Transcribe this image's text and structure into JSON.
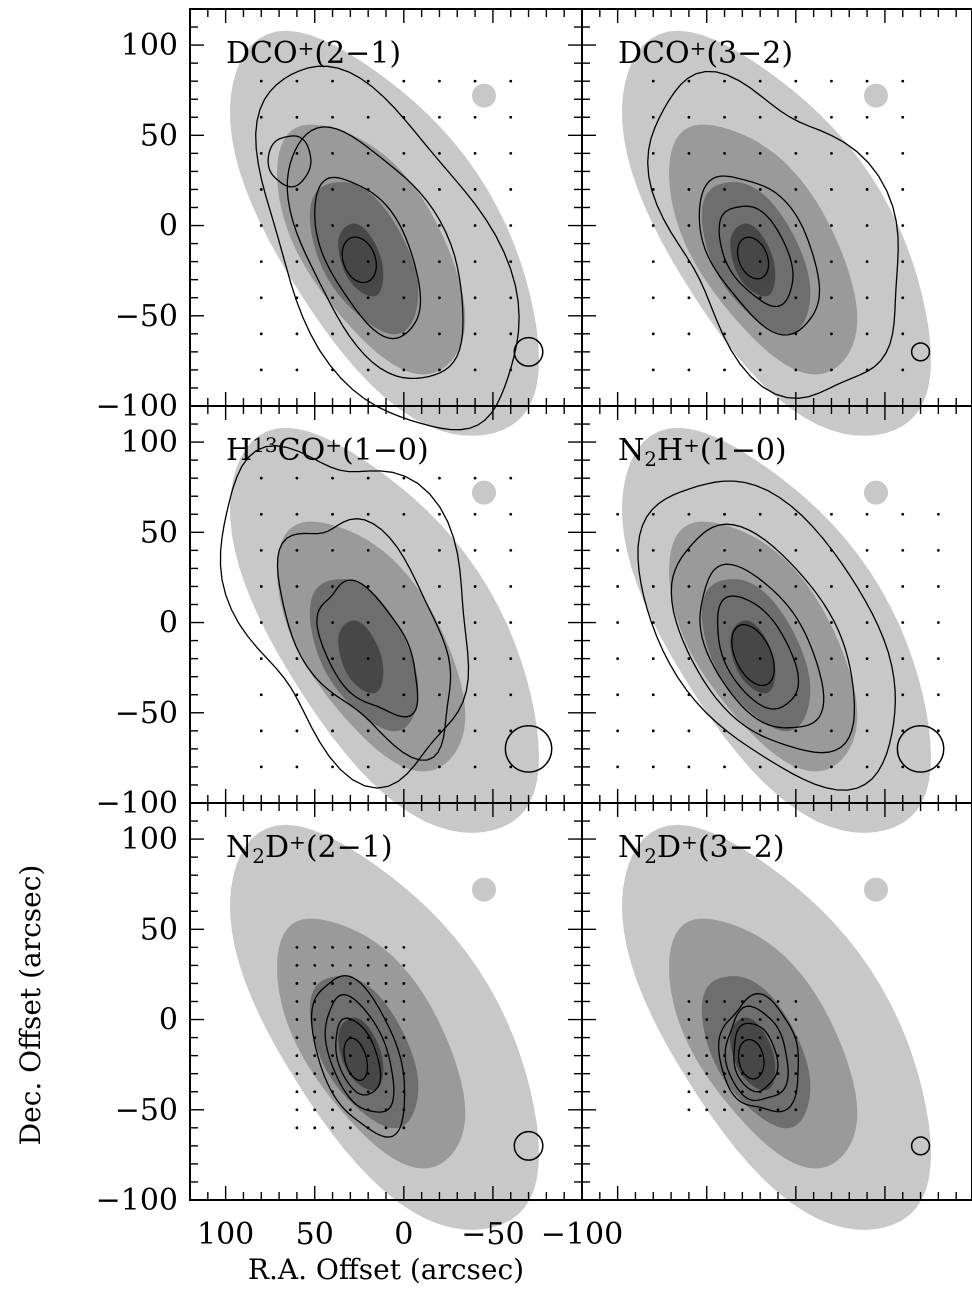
{
  "chart_data": {
    "type": "contour",
    "xlabel": "R.A. Offset (arcsec)",
    "ylabel": "Dec. Offset (arcsec)",
    "xlim": [
      120,
      -100
    ],
    "ylim": [
      -100,
      120
    ],
    "x_ticks": [
      "100",
      "50",
      "0",
      "−50",
      "−100"
    ],
    "x_tick_values": [
      100,
      50,
      0,
      -50,
      -100
    ],
    "y_ticks": [
      "100",
      "50",
      "0",
      "−50",
      "−100"
    ],
    "y_tick_values": [
      100,
      50,
      0,
      -50,
      -100
    ],
    "grayscale_levels": [
      "#c8c8c8",
      "#9a9a9a",
      "#6e6e6e",
      "#474747"
    ],
    "panels": [
      {
        "id": "dco-2-1",
        "row": 0,
        "col": 0,
        "label_parts": [
          [
            "DCO",
            ""
          ],
          [
            "+",
            "sup"
          ],
          [
            "(2−1)",
            ""
          ]
        ],
        "beam_diameter": 16,
        "contours": [
          {
            "ra": 10,
            "dec": -15,
            "dra": 57,
            "ddec": 110,
            "angle": -28,
            "wobble": 0.08
          },
          {
            "ra": 15,
            "dec": -16,
            "dra": 38,
            "ddec": 76,
            "angle": -28,
            "wobble": 0.06
          },
          {
            "ra": 20,
            "dec": -17,
            "dra": 23,
            "ddec": 48,
            "angle": -26,
            "wobble": 0.05
          },
          {
            "ra": 25,
            "dec": -19,
            "dra": 9,
            "ddec": 13,
            "angle": -20,
            "wobble": 0.0
          },
          {
            "ra": 64,
            "dec": 36,
            "dra": 12,
            "ddec": 14,
            "angle": 0,
            "wobble": 0.05
          }
        ],
        "dots": {
          "ra_from": 80,
          "ra_to": -60,
          "dec_from": -80,
          "dec_to": 80,
          "step": 20
        }
      },
      {
        "id": "dco-3-2",
        "row": 0,
        "col": 1,
        "label_parts": [
          [
            "DCO",
            ""
          ],
          [
            "+",
            "sup"
          ],
          [
            "(3−2)",
            ""
          ]
        ],
        "beam_diameter": 10,
        "contours": [
          {
            "ra": 10,
            "dec": -5,
            "dra": 58,
            "ddec": 95,
            "angle": -30,
            "wobble": 0.14
          },
          {
            "ra": 20,
            "dec": -15,
            "dra": 27,
            "ddec": 48,
            "angle": -30,
            "wobble": 0.06
          },
          {
            "ra": 22,
            "dec": -16,
            "dra": 17,
            "ddec": 30,
            "angle": -28,
            "wobble": 0.05
          },
          {
            "ra": 24,
            "dec": -18,
            "dra": 8,
            "ddec": 12,
            "angle": -22,
            "wobble": 0.0
          }
        ],
        "dots": {
          "ra_from": 80,
          "ra_to": -60,
          "dec_from": -80,
          "dec_to": 80,
          "step": 20
        }
      },
      {
        "id": "h13co-1-0",
        "row": 1,
        "col": 0,
        "label_parts": [
          [
            "H",
            ""
          ],
          [
            "13",
            "sup"
          ],
          [
            "CO",
            ""
          ],
          [
            "+",
            "sup"
          ],
          [
            "(1−0)",
            ""
          ]
        ],
        "beam_diameter": 26,
        "contours": [
          {
            "ra": 30,
            "dec": 10,
            "dra": 62,
            "ddec": 95,
            "angle": -25,
            "wobble": 0.16
          },
          {
            "ra": 20,
            "dec": -5,
            "dra": 38,
            "ddec": 70,
            "angle": -30,
            "wobble": 0.14
          },
          {
            "ra": 20,
            "dec": -15,
            "dra": 22,
            "ddec": 40,
            "angle": -30,
            "wobble": 0.1
          }
        ],
        "dots": {
          "ra_from": 80,
          "ra_to": -60,
          "dec_from": -80,
          "dec_to": 80,
          "step": 20
        }
      },
      {
        "id": "n2h-1-0",
        "row": 1,
        "col": 1,
        "label_parts": [
          [
            "N",
            ""
          ],
          [
            "2",
            "sub"
          ],
          [
            "H",
            ""
          ],
          [
            "+",
            "sup"
          ],
          [
            "(1−0)",
            ""
          ]
        ],
        "beam_diameter": 26,
        "contours": [
          {
            "ra": 15,
            "dec": -5,
            "dra": 56,
            "ddec": 96,
            "angle": -35,
            "wobble": 0.05
          },
          {
            "ra": 18,
            "dec": -10,
            "dra": 40,
            "ddec": 70,
            "angle": -33,
            "wobble": 0.05
          },
          {
            "ra": 20,
            "dec": -15,
            "dra": 27,
            "ddec": 50,
            "angle": -30,
            "wobble": 0.05
          },
          {
            "ra": 22,
            "dec": -17,
            "dra": 18,
            "ddec": 34,
            "angle": -28,
            "wobble": 0.04
          },
          {
            "ra": 24,
            "dec": -18,
            "dra": 10,
            "ddec": 18,
            "angle": -25,
            "wobble": 0.0
          }
        ],
        "dots": {
          "ra_from": 100,
          "ra_to": -80,
          "dec_from": -80,
          "dec_to": 60,
          "step": 20
        }
      },
      {
        "id": "n2d-2-1",
        "row": 2,
        "col": 0,
        "label_parts": [
          [
            "N",
            ""
          ],
          [
            "2",
            "sub"
          ],
          [
            "D",
            ""
          ],
          [
            "+",
            "sup"
          ],
          [
            "(2−1)",
            ""
          ]
        ],
        "beam_diameter": 16,
        "contours": [
          {
            "ra": 25,
            "dec": -20,
            "dra": 22,
            "ddec": 46,
            "angle": -20,
            "wobble": 0.06
          },
          {
            "ra": 25,
            "dec": -20,
            "dra": 16,
            "ddec": 34,
            "angle": -20,
            "wobble": 0.05
          },
          {
            "ra": 26,
            "dec": -21,
            "dra": 11,
            "ddec": 22,
            "angle": -18,
            "wobble": 0.04
          },
          {
            "ra": 27,
            "dec": -22,
            "dra": 6,
            "ddec": 12,
            "angle": -15,
            "wobble": 0.0
          }
        ],
        "dots": {
          "ra_from": 60,
          "ra_to": 0,
          "dec_from": -60,
          "dec_to": 40,
          "step": 10
        }
      },
      {
        "id": "n2d-3-2",
        "row": 2,
        "col": 1,
        "label_parts": [
          [
            "N",
            ""
          ],
          [
            "2",
            "sub"
          ],
          [
            "D",
            ""
          ],
          [
            "+",
            "sup"
          ],
          [
            "(3−2)",
            ""
          ]
        ],
        "beam_diameter": 10,
        "contours": [
          {
            "ra": 20,
            "dec": -20,
            "dra": 22,
            "ddec": 32,
            "angle": -10,
            "wobble": 0.1
          },
          {
            "ra": 22,
            "dec": -20,
            "dra": 17,
            "ddec": 26,
            "angle": -10,
            "wobble": 0.08
          },
          {
            "ra": 23,
            "dec": -21,
            "dra": 12,
            "ddec": 19,
            "angle": -10,
            "wobble": 0.06
          },
          {
            "ra": 25,
            "dec": -22,
            "dra": 7,
            "ddec": 11,
            "angle": -10,
            "wobble": 0.0
          }
        ],
        "dots": {
          "ra_from": 60,
          "ra_to": 0,
          "dec_from": -50,
          "dec_to": 10,
          "step": 10
        }
      }
    ]
  }
}
